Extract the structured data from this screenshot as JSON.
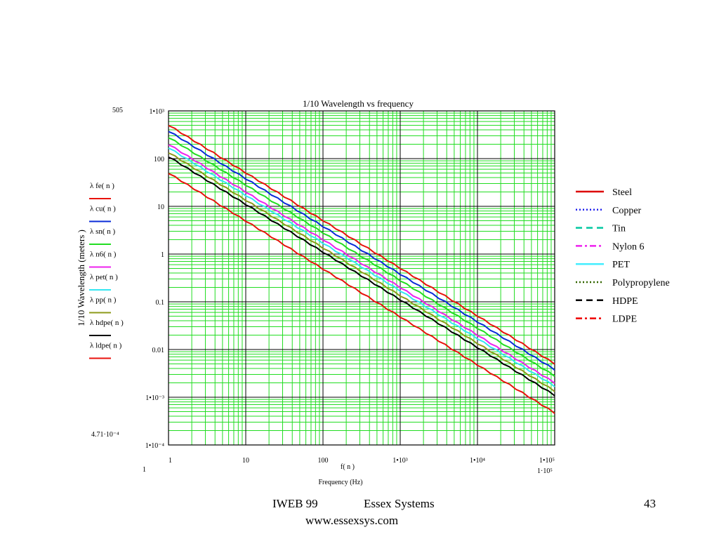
{
  "chart_data": {
    "type": "line",
    "title": "1/10 Wavelength vs frequency",
    "xlabel": "Frequency (Hz)",
    "x_var_label": "f( n )",
    "ylabel": "1/10 Wavelength (meters )",
    "x_scale": "log",
    "y_scale": "log",
    "xlim": [
      1,
      100000
    ],
    "ylim": [
      0.0001,
      1000
    ],
    "grid": true,
    "legend_position": "right",
    "x_ticks": [
      {
        "value": 1,
        "label": "1"
      },
      {
        "value": 10,
        "label": "10"
      },
      {
        "value": 100,
        "label": "100"
      },
      {
        "value": 1000,
        "label": "1•10³"
      },
      {
        "value": 10000,
        "label": "1•10⁴"
      },
      {
        "value": 100000,
        "label": "1•10⁵"
      }
    ],
    "y_ticks": [
      {
        "value": 1000,
        "label": "1•10³"
      },
      {
        "value": 100,
        "label": "100"
      },
      {
        "value": 10,
        "label": "10"
      },
      {
        "value": 1,
        "label": "1"
      },
      {
        "value": 0.1,
        "label": "0.1"
      },
      {
        "value": 0.01,
        "label": "0.01"
      },
      {
        "value": 0.001,
        "label": "1•10⁻³"
      },
      {
        "value": 0.0001,
        "label": "1•10⁻⁴"
      }
    ],
    "range_markers": {
      "y_max": "505",
      "y_min": "4.71·10⁻⁴",
      "x_min": "1",
      "x_max": "1·10⁵"
    },
    "series": [
      {
        "name": "Steel",
        "expr": "λ fe( n )",
        "color": "#e8120c",
        "values_at_x1": 505,
        "values_at_x100000": 0.00505
      },
      {
        "name": "Copper",
        "expr": "λ cu( n )",
        "color": "#0a2bd8",
        "values_at_x1": 380,
        "values_at_x100000": 0.0038
      },
      {
        "name": "Tin",
        "expr": "λ sn( n )",
        "color": "#22dd22",
        "values_at_x1": 280,
        "values_at_x100000": 0.0028
      },
      {
        "name": "Nylon 6",
        "expr": "λ n6( n )",
        "color": "#ee22ee",
        "values_at_x1": 200,
        "values_at_x100000": 0.002
      },
      {
        "name": "PET",
        "expr": "λ pet( n )",
        "color": "#33e6f2",
        "values_at_x1": 170,
        "values_at_x100000": 0.0017
      },
      {
        "name": "Polypropylene",
        "expr": "λ pp( n )",
        "color": "#8c9a1a",
        "values_at_x1": 135,
        "values_at_x100000": 0.00135
      },
      {
        "name": "HDPE",
        "expr": "λ hdpe( n )",
        "color": "#000000",
        "values_at_x1": 110,
        "values_at_x100000": 0.0011
      },
      {
        "name": "LDPE",
        "expr": "λ ldpe( n )",
        "color": "#e8120c",
        "values_at_x1": 50,
        "values_at_x100000": 0.000471
      }
    ],
    "legend": [
      {
        "label": "Steel",
        "color": "#dd0000",
        "dash": "solid"
      },
      {
        "label": "Copper",
        "color": "#2222ee",
        "dash": "dotted"
      },
      {
        "label": "Tin",
        "color": "#00c8a0",
        "dash": "dashed"
      },
      {
        "label": "Nylon 6",
        "color": "#ee22ee",
        "dash": "dashdot"
      },
      {
        "label": "PET",
        "color": "#44eeff",
        "dash": "solid"
      },
      {
        "label": "Polypropylene",
        "color": "#336600",
        "dash": "dotted"
      },
      {
        "label": "HDPE",
        "color": "#000000",
        "dash": "dashed"
      },
      {
        "label": "LDPE",
        "color": "#ee0000",
        "dash": "dashdot"
      }
    ],
    "colors": {
      "grid_minor": "#22dd22",
      "grid_major": "#000000"
    }
  },
  "footer": {
    "left": "IWEB 99",
    "center": "Essex Systems",
    "page": "43",
    "url": "www.essexsys.com"
  }
}
